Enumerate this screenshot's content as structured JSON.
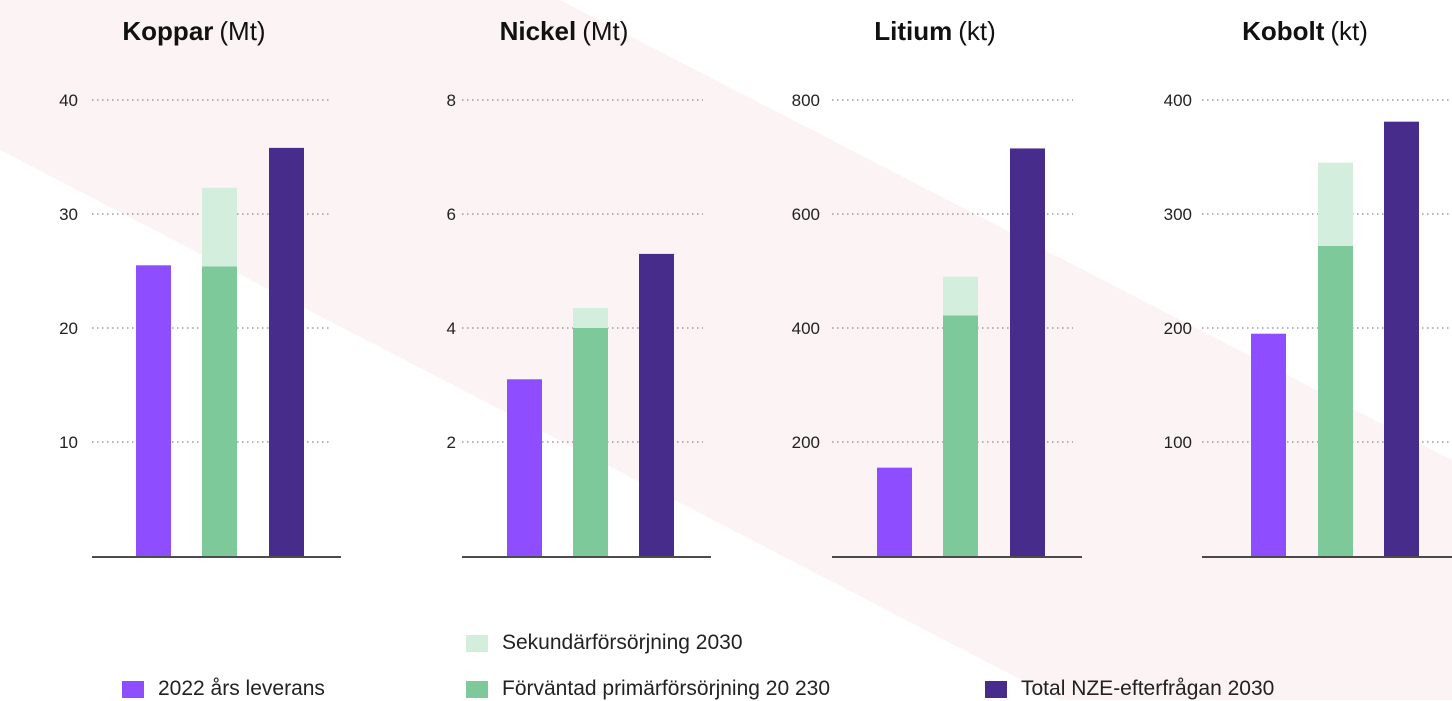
{
  "chart_data": [
    {
      "type": "bar",
      "title": "Koppar",
      "unit": "(Mt)",
      "ylim": [
        0,
        40
      ],
      "yticks": [
        10,
        20,
        30,
        40
      ],
      "grid": true,
      "bars": [
        {
          "series": "2022 års leverans",
          "value": 25.5
        },
        {
          "series": "Förväntad primärförsörjning 20 230",
          "value": 25.4,
          "secondary": 6.9
        },
        {
          "series": "Total NZE-efterfrågan 2030",
          "value": 35.8
        }
      ]
    },
    {
      "type": "bar",
      "title": "Nickel",
      "unit": "(Mt)",
      "ylim": [
        0,
        8
      ],
      "yticks": [
        2,
        4,
        6,
        8
      ],
      "grid": true,
      "bars": [
        {
          "series": "2022 års leverans",
          "value": 3.1
        },
        {
          "series": "Förväntad primärförsörjning 20 230",
          "value": 4.0,
          "secondary": 0.35
        },
        {
          "series": "Total NZE-efterfrågan 2030",
          "value": 5.3
        }
      ]
    },
    {
      "type": "bar",
      "title": "Litium",
      "unit": "(kt)",
      "ylim": [
        0,
        800
      ],
      "yticks": [
        200,
        400,
        600,
        800
      ],
      "grid": true,
      "bars": [
        {
          "series": "2022 års leverans",
          "value": 155
        },
        {
          "series": "Förväntad primärförsörjning 20 230",
          "value": 422,
          "secondary": 68
        },
        {
          "series": "Total NZE-efterfrågan 2030",
          "value": 715
        }
      ]
    },
    {
      "type": "bar",
      "title": "Kobolt",
      "unit": "(kt)",
      "ylim": [
        0,
        400
      ],
      "yticks": [
        100,
        200,
        300,
        400
      ],
      "grid": true,
      "bars": [
        {
          "series": "2022 års leverans",
          "value": 195
        },
        {
          "series": "Förväntad primärförsörjning 20 230",
          "value": 272,
          "secondary": 73
        },
        {
          "series": "Total NZE-efterfrågan 2030",
          "value": 381
        }
      ]
    }
  ],
  "legend": [
    {
      "label": "Sekundärförsörjning 2030",
      "color": "#d3eedd"
    },
    {
      "label": "2022 års leverans",
      "color": "#8e4dff"
    },
    {
      "label": "Förväntad primärförsörjning 20 230",
      "color": "#7ec999"
    },
    {
      "label": "Total NZE-efterfrågan 2030",
      "color": "#482c8c"
    }
  ],
  "colors": {
    "supply_2022": "#8e4dff",
    "primary_2030": "#7ec999",
    "secondary_2030": "#d3eedd",
    "demand_2030": "#482c8c",
    "background_stripe": "#fcf3f5"
  }
}
